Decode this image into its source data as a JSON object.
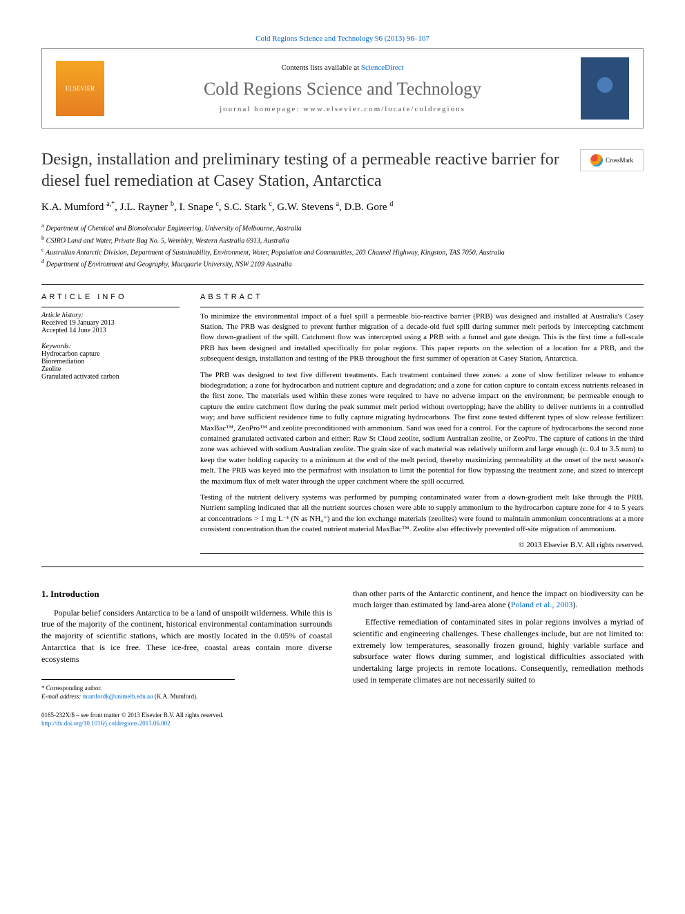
{
  "top_link": "Cold Regions Science and Technology 96 (2013) 96–107",
  "header": {
    "contents_prefix": "Contents lists available at ",
    "contents_link": "ScienceDirect",
    "journal_name": "Cold Regions Science and Technology",
    "homepage_label": "journal homepage: www.elsevier.com/locate/coldregions",
    "elsevier": "ELSEVIER"
  },
  "crossmark": "CrossMark",
  "title": "Design, installation and preliminary testing of a permeable reactive barrier for diesel fuel remediation at Casey Station, Antarctica",
  "authors_html": "K.A. Mumford <sup>a,*</sup>, J.L. Rayner <sup>b</sup>, I. Snape <sup>c</sup>, S.C. Stark <sup>c</sup>, G.W. Stevens <sup>a</sup>, D.B. Gore <sup>d</sup>",
  "affiliations": [
    "a Department of Chemical and Biomolecular Engineering, University of Melbourne, Australia",
    "b CSIRO Land and Water, Private Bag No. 5, Wembley, Western Australia 6913, Australia",
    "c Australian Antarctic Division, Department of Sustainability, Environment, Water, Population and Communities, 203 Channel Highway, Kingston, TAS 7050, Australia",
    "d Department of Environment and Geography, Macquarie University, NSW 2109 Australia"
  ],
  "article_info": {
    "header": "ARTICLE INFO",
    "history_label": "Article history:",
    "received": "Received 19 January 2013",
    "accepted": "Accepted 14 June 2013",
    "keywords_label": "Keywords:",
    "keywords": [
      "Hydrocarbon capture",
      "Bioremediation",
      "Zeolite",
      "Granulated activated carbon"
    ]
  },
  "abstract": {
    "header": "ABSTRACT",
    "p1": "To minimize the environmental impact of a fuel spill a permeable bio-reactive barrier (PRB) was designed and installed at Australia's Casey Station. The PRB was designed to prevent further migration of a decade-old fuel spill during summer melt periods by intercepting catchment flow down-gradient of the spill. Catchment flow was intercepted using a PRB with a funnel and gate design. This is the first time a full-scale PRB has been designed and installed specifically for polar regions. This paper reports on the selection of a location for a PRB, and the subsequent design, installation and testing of the PRB throughout the first summer of operation at Casey Station, Antarctica.",
    "p2": "The PRB was designed to test five different treatments. Each treatment contained three zones: a zone of slow fertilizer release to enhance biodegradation; a zone for hydrocarbon and nutrient capture and degradation; and a zone for cation capture to contain excess nutrients released in the first zone. The materials used within these zones were required to have no adverse impact on the environment; be permeable enough to capture the entire catchment flow during the peak summer melt period without overtopping; have the ability to deliver nutrients in a controlled way; and have sufficient residence time to fully capture migrating hydrocarbons. The first zone tested different types of slow release fertilizer: MaxBac™, ZeoPro™ and zeolite preconditioned with ammonium. Sand was used for a control. For the capture of hydrocarbons the second zone contained granulated activated carbon and either: Raw St Cloud zeolite, sodium Australian zeolite, or ZeoPro. The capture of cations in the third zone was achieved with sodium Australian zeolite. The grain size of each material was relatively uniform and large enough (c. 0.4 to 3.5 mm) to keep the water holding capacity to a minimum at the end of the melt period, thereby maximizing permeability at the onset of the next season's melt. The PRB was keyed into the permafrost with insulation to limit the potential for flow bypassing the treatment zone, and sized to intercept the maximum flux of melt water through the upper catchment where the spill occurred.",
    "p3": "Testing of the nutrient delivery systems was performed by pumping contaminated water from a down-gradient melt lake through the PRB. Nutrient sampling indicated that all the nutrient sources chosen were able to supply ammonium to the hydrocarbon capture zone for 4 to 5 years at concentrations > 1 mg L⁻¹ (N as NH₄⁺) and the ion exchange materials (zeolites) were found to maintain ammonium concentrations at a more consistent concentration than the coated nutrient material MaxBac™. Zeolite also effectively prevented off-site migration of ammonium.",
    "copyright": "© 2013 Elsevier B.V. All rights reserved."
  },
  "body": {
    "intro_heading": "1. Introduction",
    "left_p1": "Popular belief considers Antarctica to be a land of unspoilt wilderness. While this is true of the majority of the continent, historical environmental contamination surrounds the majority of scientific stations, which are mostly located in the 0.05% of coastal Antarctica that is ice free. These ice-free, coastal areas contain more diverse ecosystems",
    "right_p1_a": "than other parts of the Antarctic continent, and hence the impact on biodiversity can be much larger than estimated by land-area alone (",
    "right_p1_link": "Poland et al., 2003",
    "right_p1_b": ").",
    "right_p2": "Effective remediation of contaminated sites in polar regions involves a myriad of scientific and engineering challenges. These challenges include, but are not limited to: extremely low temperatures, seasonally frozen ground, highly variable surface and subsurface water flows during summer, and logistical difficulties associated with undertaking large projects in remote locations. Consequently, remediation methods used in temperate climates are not necessarily suited to"
  },
  "footer_notes": {
    "corresponding": "* Corresponding author.",
    "email_label": "E-mail address: ",
    "email": "mumfordk@unimelb.edu.au",
    "email_suffix": " (K.A. Mumford)."
  },
  "page_footer": {
    "line1": "0165-232X/$ – see front matter © 2013 Elsevier B.V. All rights reserved.",
    "doi": "http://dx.doi.org/10.1016/j.coldregions.2013.06.002"
  },
  "colors": {
    "link": "#0066cc",
    "text": "#000000",
    "journal_name": "#666666"
  }
}
